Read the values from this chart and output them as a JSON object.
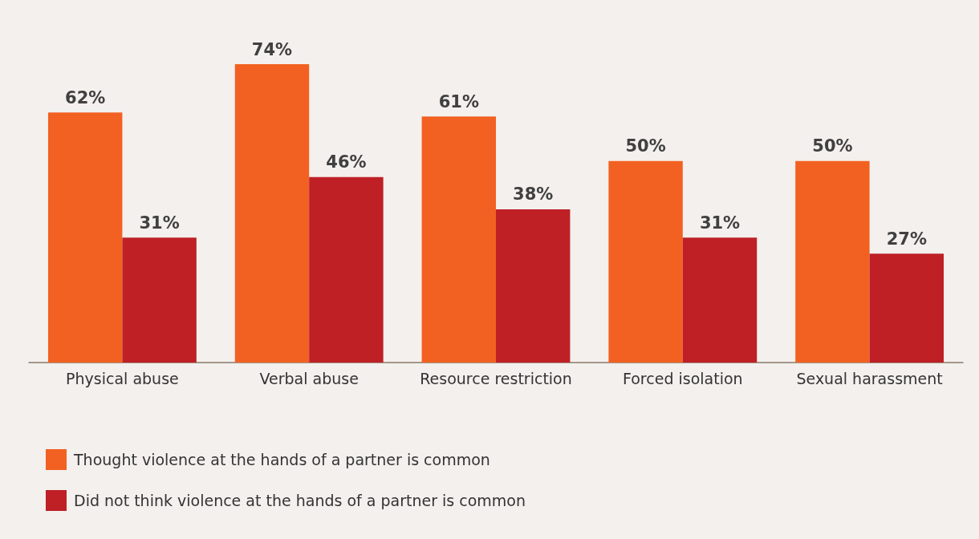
{
  "chart_data": {
    "type": "bar",
    "categories": [
      "Physical abuse",
      "Verbal abuse",
      "Resource restriction",
      "Forced isolation",
      "Sexual harassment"
    ],
    "series": [
      {
        "name": "Thought violence at the hands of a partner is common",
        "color": "#f26122",
        "values": [
          62,
          74,
          61,
          50,
          50
        ],
        "value_labels": [
          "62%",
          "74%",
          "61%",
          "50%",
          "50%"
        ]
      },
      {
        "name": "Did not think violence at the hands of a partner is common",
        "color": "#be2026",
        "values": [
          31,
          46,
          38,
          31,
          27
        ],
        "value_labels": [
          "31%",
          "46%",
          "38%",
          "31%",
          "27%"
        ]
      }
    ],
    "legend": "bottom left"
  }
}
